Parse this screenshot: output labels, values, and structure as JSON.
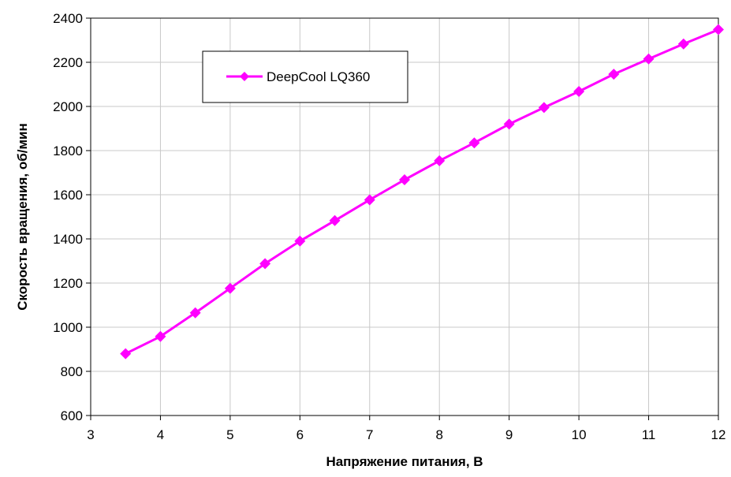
{
  "chart_data": {
    "type": "line",
    "xlabel": "Напряжение питания, В",
    "ylabel": "Скорость вращения, об/мин",
    "xlim": [
      3,
      12
    ],
    "ylim": [
      600,
      2400
    ],
    "x_ticks": [
      3,
      4,
      5,
      6,
      7,
      8,
      9,
      10,
      11,
      12
    ],
    "y_ticks": [
      600,
      800,
      1000,
      1200,
      1400,
      1600,
      1800,
      2000,
      2200,
      2400
    ],
    "grid": true,
    "legend_position": "top-left",
    "series": [
      {
        "name": "DeepCool LQ360",
        "color": "#ff00ff",
        "marker": "diamond",
        "x": [
          3.5,
          4,
          4.5,
          5,
          5.5,
          6,
          6.5,
          7,
          7.5,
          8,
          8.5,
          9,
          9.5,
          10,
          10.5,
          11,
          11.5,
          12
        ],
        "y": [
          880,
          958,
          1065,
          1176,
          1288,
          1390,
          1483,
          1577,
          1668,
          1754,
          1835,
          1920,
          1995,
          2068,
          2146,
          2215,
          2283,
          2348
        ]
      }
    ]
  }
}
